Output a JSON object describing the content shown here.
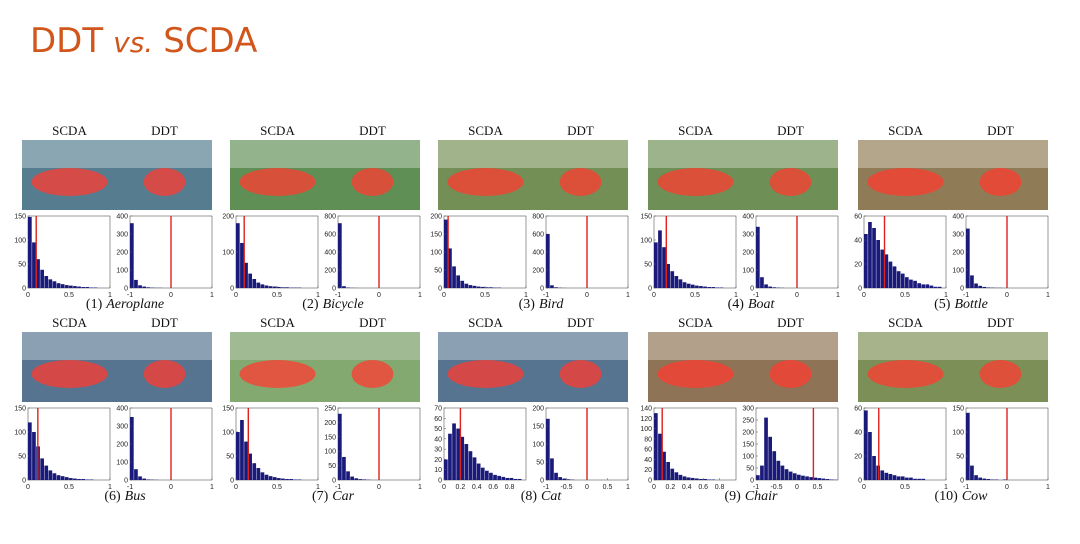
{
  "title": [
    "DDT",
    "vs.",
    "SCDA"
  ],
  "panels": [
    {
      "number": "(1)",
      "name": "Aeroplane",
      "left": {
        "label": "SCDA",
        "xlim": [
          0,
          1
        ],
        "xticks": [
          0,
          0.5,
          1
        ],
        "ylim": [
          0,
          150
        ],
        "yticks": [
          0,
          50,
          100,
          150
        ],
        "threshold": 0.1,
        "counts": [
          148,
          95,
          60,
          38,
          25,
          18,
          14,
          10,
          8,
          6,
          5,
          4,
          3,
          2,
          2,
          1,
          1,
          0,
          0,
          0
        ]
      },
      "right": {
        "label": "DDT",
        "xlim": [
          -1,
          1
        ],
        "xticks": [
          -1,
          0,
          1
        ],
        "ylim": [
          0,
          400
        ],
        "yticks": [
          0,
          100,
          200,
          300,
          400
        ],
        "threshold": 0,
        "counts": [
          360,
          45,
          15,
          8,
          4,
          2,
          1,
          1,
          0,
          0,
          0,
          0,
          0,
          0,
          0,
          0,
          0,
          0,
          0,
          0
        ]
      }
    },
    {
      "number": "(2)",
      "name": "Bicycle",
      "left": {
        "label": "SCDA",
        "xlim": [
          0,
          1
        ],
        "xticks": [
          0,
          0.5,
          1
        ],
        "ylim": [
          0,
          200
        ],
        "yticks": [
          0,
          100,
          200
        ],
        "threshold": 0.1,
        "counts": [
          180,
          125,
          70,
          40,
          25,
          15,
          10,
          7,
          5,
          4,
          3,
          2,
          2,
          1,
          1,
          1,
          0,
          0,
          0,
          0
        ]
      },
      "right": {
        "label": "DDT",
        "xlim": [
          -1,
          1
        ],
        "xticks": [
          -1,
          0,
          1
        ],
        "ylim": [
          0,
          800
        ],
        "yticks": [
          0,
          200,
          400,
          600,
          800
        ],
        "threshold": 0,
        "counts": [
          720,
          20,
          5,
          2,
          1,
          0,
          0,
          0,
          0,
          0,
          0,
          0,
          0,
          0,
          0,
          0,
          0,
          0,
          0,
          0
        ]
      }
    },
    {
      "number": "(3)",
      "name": "Bird",
      "left": {
        "label": "SCDA",
        "xlim": [
          0,
          1
        ],
        "xticks": [
          0,
          0.5,
          1
        ],
        "ylim": [
          0,
          200
        ],
        "yticks": [
          0,
          50,
          100,
          150,
          200
        ],
        "threshold": 0.05,
        "counts": [
          190,
          110,
          60,
          35,
          20,
          12,
          8,
          6,
          4,
          3,
          2,
          2,
          1,
          1,
          0,
          0,
          0,
          0,
          0,
          0
        ]
      },
      "right": {
        "label": "DDT",
        "xlim": [
          -1,
          1
        ],
        "xticks": [
          -1,
          0,
          1
        ],
        "ylim": [
          0,
          800
        ],
        "yticks": [
          0,
          200,
          400,
          600,
          800
        ],
        "threshold": 0,
        "counts": [
          600,
          30,
          8,
          3,
          1,
          0,
          0,
          0,
          0,
          0,
          0,
          0,
          0,
          0,
          0,
          0,
          0,
          0,
          0,
          0
        ]
      }
    },
    {
      "number": "(4)",
      "name": "Boat",
      "left": {
        "label": "SCDA",
        "xlim": [
          0,
          1
        ],
        "xticks": [
          0,
          0.5,
          1
        ],
        "ylim": [
          0,
          150
        ],
        "yticks": [
          0,
          50,
          100,
          150
        ],
        "threshold": 0.15,
        "counts": [
          95,
          120,
          85,
          50,
          35,
          25,
          18,
          12,
          9,
          7,
          5,
          4,
          3,
          2,
          2,
          1,
          1,
          0,
          0,
          0
        ]
      },
      "right": {
        "label": "DDT",
        "xlim": [
          -1,
          1
        ],
        "xticks": [
          -1,
          0,
          1
        ],
        "ylim": [
          0,
          400
        ],
        "yticks": [
          0,
          100,
          200,
          300,
          400
        ],
        "threshold": 0,
        "counts": [
          340,
          60,
          20,
          8,
          4,
          2,
          1,
          0,
          0,
          0,
          0,
          0,
          0,
          0,
          0,
          0,
          0,
          0,
          0,
          0
        ]
      }
    },
    {
      "number": "(5)",
      "name": "Bottle",
      "left": {
        "label": "SCDA",
        "xlim": [
          0,
          1
        ],
        "xticks": [
          0,
          0.5,
          1
        ],
        "ylim": [
          0,
          60
        ],
        "yticks": [
          0,
          20,
          40,
          60
        ],
        "threshold": 0.25,
        "counts": [
          45,
          55,
          50,
          40,
          32,
          28,
          22,
          18,
          14,
          12,
          9,
          7,
          6,
          4,
          3,
          3,
          2,
          1,
          1,
          0
        ]
      },
      "right": {
        "label": "DDT",
        "xlim": [
          -1,
          1
        ],
        "xticks": [
          -1,
          0,
          1
        ],
        "ylim": [
          0,
          400
        ],
        "yticks": [
          0,
          100,
          200,
          300,
          400
        ],
        "threshold": 0,
        "counts": [
          330,
          70,
          25,
          12,
          6,
          3,
          2,
          1,
          1,
          0,
          0,
          0,
          0,
          0,
          0,
          0,
          0,
          0,
          0,
          0
        ]
      }
    },
    {
      "number": "(6)",
      "name": "Bus",
      "left": {
        "label": "SCDA",
        "xlim": [
          0,
          1
        ],
        "xticks": [
          0,
          0.5,
          1
        ],
        "ylim": [
          0,
          150
        ],
        "yticks": [
          0,
          50,
          100,
          150
        ],
        "threshold": 0.12,
        "counts": [
          120,
          100,
          70,
          45,
          30,
          20,
          14,
          10,
          8,
          6,
          4,
          3,
          2,
          2,
          1,
          1,
          0,
          0,
          0,
          0
        ]
      },
      "right": {
        "label": "DDT",
        "xlim": [
          -1,
          1
        ],
        "xticks": [
          -1,
          0,
          1
        ],
        "ylim": [
          0,
          400
        ],
        "yticks": [
          0,
          100,
          200,
          300,
          400
        ],
        "threshold": 0,
        "counts": [
          350,
          60,
          20,
          8,
          3,
          2,
          1,
          0,
          0,
          0,
          0,
          0,
          0,
          0,
          0,
          0,
          0,
          0,
          0,
          0
        ]
      }
    },
    {
      "number": "(7)",
      "name": "Car",
      "left": {
        "label": "SCDA",
        "xlim": [
          0,
          1
        ],
        "xticks": [
          0,
          0.5,
          1
        ],
        "ylim": [
          0,
          150
        ],
        "yticks": [
          0,
          50,
          100,
          150
        ],
        "threshold": 0.15,
        "counts": [
          100,
          125,
          80,
          55,
          35,
          25,
          16,
          11,
          8,
          6,
          4,
          3,
          2,
          2,
          1,
          1,
          0,
          0,
          0,
          0
        ]
      },
      "right": {
        "label": "DDT",
        "xlim": [
          -1,
          1
        ],
        "xticks": [
          -1,
          0,
          1
        ],
        "ylim": [
          0,
          250
        ],
        "yticks": [
          0,
          50,
          100,
          150,
          200,
          250
        ],
        "threshold": 0,
        "counts": [
          230,
          80,
          30,
          12,
          6,
          3,
          2,
          1,
          0,
          0,
          0,
          0,
          0,
          0,
          0,
          0,
          0,
          0,
          0,
          0
        ]
      }
    },
    {
      "number": "(8)",
      "name": "Cat",
      "left": {
        "label": "SCDA",
        "xlim": [
          0,
          1
        ],
        "xticks": [
          0,
          0.2,
          0.4,
          0.6,
          0.8
        ],
        "ylim": [
          0,
          70
        ],
        "yticks": [
          0,
          10,
          20,
          30,
          40,
          50,
          60,
          70
        ],
        "threshold": 0.2,
        "counts": [
          20,
          45,
          55,
          50,
          42,
          35,
          28,
          22,
          16,
          12,
          9,
          7,
          5,
          4,
          3,
          2,
          2,
          1,
          1,
          0
        ]
      },
      "right": {
        "label": "DDT",
        "xlim": [
          -1,
          1
        ],
        "xticks": [
          -1,
          -0.5,
          0,
          0.5,
          1
        ],
        "ylim": [
          0,
          200
        ],
        "yticks": [
          0,
          50,
          100,
          150,
          200
        ],
        "threshold": 0,
        "counts": [
          170,
          60,
          20,
          8,
          4,
          2,
          1,
          0,
          0,
          0,
          0,
          0,
          0,
          0,
          0,
          0,
          0,
          0,
          0,
          0
        ]
      }
    },
    {
      "number": "(9)",
      "name": "Chair",
      "left": {
        "label": "SCDA",
        "xlim": [
          0,
          1
        ],
        "xticks": [
          0,
          0.2,
          0.4,
          0.6,
          0.8
        ],
        "ylim": [
          0,
          140
        ],
        "yticks": [
          0,
          20,
          40,
          60,
          80,
          100,
          120,
          140
        ],
        "threshold": 0.1,
        "counts": [
          130,
          90,
          55,
          35,
          22,
          15,
          10,
          7,
          5,
          4,
          3,
          2,
          2,
          1,
          1,
          0,
          0,
          0,
          0,
          0
        ]
      },
      "right": {
        "label": "DDT",
        "xlim": [
          -1,
          1
        ],
        "xticks": [
          -1,
          -0.5,
          0,
          0.5
        ],
        "ylim": [
          0,
          300
        ],
        "yticks": [
          0,
          50,
          100,
          150,
          200,
          250,
          300
        ],
        "threshold": 0.4,
        "counts": [
          20,
          60,
          260,
          180,
          120,
          80,
          60,
          45,
          35,
          28,
          22,
          18,
          15,
          12,
          10,
          8,
          6,
          4,
          2,
          1
        ]
      }
    },
    {
      "number": "(10)",
      "name": "Cow",
      "left": {
        "label": "SCDA",
        "xlim": [
          0,
          1
        ],
        "xticks": [
          0,
          0.5,
          1
        ],
        "ylim": [
          0,
          60
        ],
        "yticks": [
          0,
          20,
          40,
          60
        ],
        "threshold": 0.18,
        "counts": [
          58,
          40,
          20,
          12,
          8,
          6,
          5,
          4,
          3,
          3,
          2,
          2,
          1,
          1,
          1,
          0,
          0,
          0,
          0,
          0
        ]
      },
      "right": {
        "label": "DDT",
        "xlim": [
          -1,
          1
        ],
        "xticks": [
          -1,
          0,
          1
        ],
        "ylim": [
          0,
          150
        ],
        "yticks": [
          0,
          50,
          100,
          150
        ],
        "threshold": 0,
        "counts": [
          140,
          30,
          10,
          5,
          3,
          2,
          1,
          1,
          0,
          1,
          0,
          0,
          0,
          0,
          0,
          0,
          0,
          0,
          0,
          0
        ]
      }
    }
  ]
}
